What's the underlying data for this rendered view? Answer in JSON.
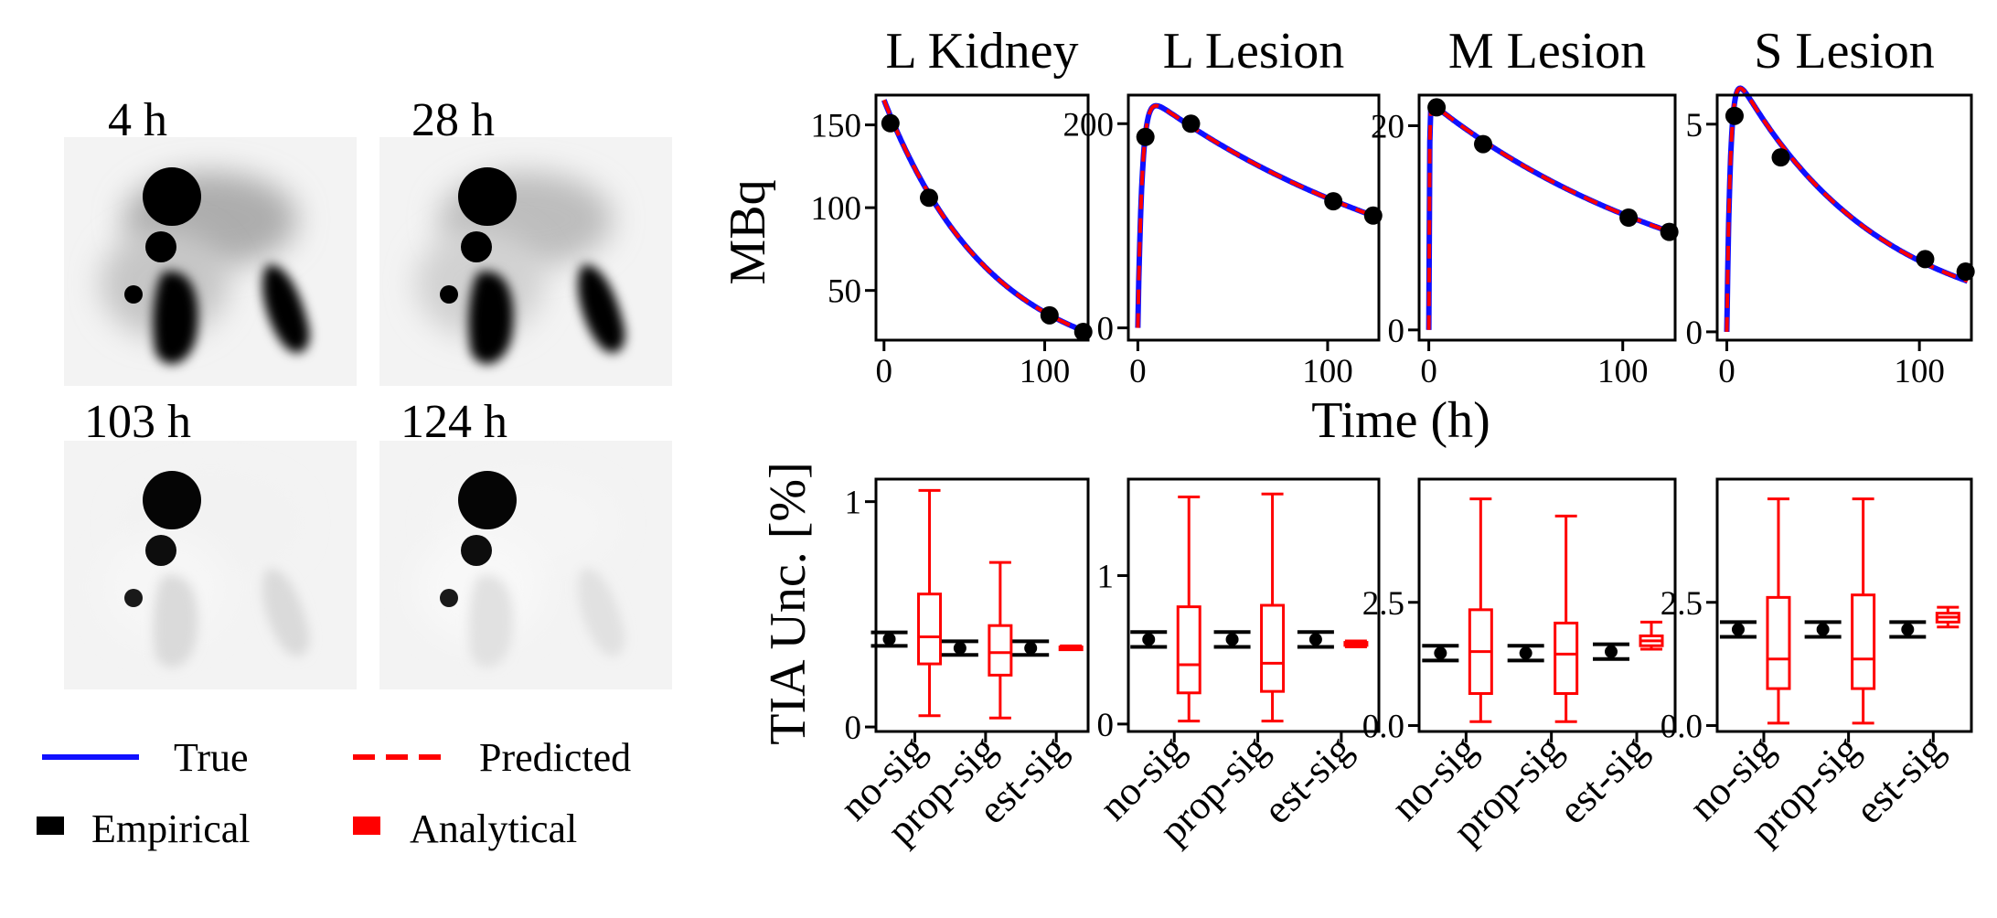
{
  "scans": [
    {
      "label": "4 h",
      "liver_intensity": 0.32,
      "organ_intensity": 1.0
    },
    {
      "label": "28 h",
      "liver_intensity": 0.26,
      "organ_intensity": 1.0
    },
    {
      "label": "103 h",
      "liver_intensity": 0.05,
      "organ_intensity": 0.16
    },
    {
      "label": "124 h",
      "liver_intensity": 0.04,
      "organ_intensity": 0.13
    }
  ],
  "legend": {
    "true_label": "True",
    "predicted_label": "Predicted",
    "empirical_label": "Empirical",
    "analytical_label": "Analytical"
  },
  "colors": {
    "true": "#1010ff",
    "predicted": "#ff0000",
    "empirical": "#000000",
    "analytical": "#ff0000"
  },
  "labels": {
    "time_axis": "Time (h)",
    "mbq_axis": "MBq",
    "tia_axis": "TIA Unc. [%]"
  },
  "chart_data": [
    {
      "type": "line",
      "title": "L Kidney",
      "xlabel": "Time (h)",
      "ylabel": "MBq",
      "xlim": [
        -5,
        127
      ],
      "ylim": [
        20,
        168
      ],
      "xticks": [
        0,
        100
      ],
      "yticks": [
        50,
        100,
        150
      ],
      "ytick_labels": [
        "50",
        "100",
        "150"
      ],
      "series": [
        {
          "name": "True",
          "model": {
            "A": 165,
            "k1": 0.0,
            "k2": 0.015,
            "peak": 0
          }
        },
        {
          "name": "Predicted",
          "model": {
            "A": 165,
            "k1": 0.0,
            "k2": 0.015,
            "peak": 0
          }
        }
      ],
      "points": {
        "x": [
          4,
          28,
          103,
          124
        ],
        "y": [
          151,
          106,
          35,
          25
        ]
      }
    },
    {
      "type": "line",
      "title": "L Lesion",
      "xlabel": "Time (h)",
      "ylabel": "MBq",
      "xlim": [
        -5,
        127
      ],
      "ylim": [
        -12,
        228
      ],
      "xticks": [
        0,
        100
      ],
      "yticks": [
        0,
        200
      ],
      "ytick_labels": [
        "0",
        "200"
      ],
      "series": [
        {
          "name": "True"
        },
        {
          "name": "Predicted"
        }
      ],
      "model": {
        "A": 234,
        "ke": 0.0061,
        "ka": 0.45
      },
      "points": {
        "x": [
          4,
          28,
          103,
          124
        ],
        "y": [
          187,
          200,
          124,
          110
        ]
      }
    },
    {
      "type": "line",
      "title": "M Lesion",
      "xlabel": "Time (h)",
      "ylabel": "MBq",
      "xlim": [
        -5,
        127
      ],
      "ylim": [
        -1,
        23
      ],
      "xticks": [
        0,
        100
      ],
      "yticks": [
        0,
        20
      ],
      "ytick_labels": [
        "0",
        "20"
      ],
      "series": [
        {
          "name": "True"
        },
        {
          "name": "Predicted"
        }
      ],
      "model": {
        "A": 22.4,
        "ke": 0.0068,
        "ka": 3.5
      },
      "points": {
        "x": [
          4,
          28,
          103,
          124
        ],
        "y": [
          21.8,
          18.2,
          11.0,
          9.6
        ]
      }
    },
    {
      "type": "line",
      "title": "S Lesion",
      "xlabel": "Time (h)",
      "ylabel": "MBq",
      "xlim": [
        -5,
        127
      ],
      "ylim": [
        -0.2,
        5.7
      ],
      "xticks": [
        0,
        100
      ],
      "yticks": [
        0,
        5
      ],
      "ytick_labels": [
        "0",
        "5"
      ],
      "series": [
        {
          "name": "True"
        },
        {
          "name": "Predicted"
        }
      ],
      "model": {
        "A": 6.6,
        "ke": 0.0135,
        "ka": 0.55
      },
      "points": {
        "x": [
          4,
          28,
          103,
          124
        ],
        "y": [
          5.2,
          4.2,
          1.75,
          1.45
        ]
      }
    },
    {
      "type": "box",
      "title": "",
      "ylabel": "TIA Unc. [%]",
      "ylim": [
        -0.02,
        1.1
      ],
      "yticks": [
        0,
        1
      ],
      "ytick_labels": [
        "0",
        "1"
      ],
      "categories": [
        "no-sig",
        "prop-sig",
        "est-sig"
      ],
      "empirical": [
        {
          "mean": 0.39,
          "lo": 0.36,
          "hi": 0.42
        },
        {
          "mean": 0.35,
          "lo": 0.32,
          "hi": 0.38
        },
        {
          "mean": 0.35,
          "lo": 0.32,
          "hi": 0.38
        }
      ],
      "analytical": [
        {
          "min": 0.05,
          "q1": 0.28,
          "med": 0.4,
          "q3": 0.59,
          "max": 1.05
        },
        {
          "min": 0.04,
          "q1": 0.23,
          "med": 0.33,
          "q3": 0.45,
          "max": 0.73
        },
        {
          "min": 0.345,
          "q1": 0.35,
          "med": 0.352,
          "q3": 0.355,
          "max": 0.36
        }
      ]
    },
    {
      "type": "box",
      "title": "",
      "ylabel": "TIA Unc. [%]",
      "ylim": [
        -0.05,
        1.65
      ],
      "yticks": [
        0,
        1
      ],
      "ytick_labels": [
        "0",
        "1"
      ],
      "categories": [
        "no-sig",
        "prop-sig",
        "est-sig"
      ],
      "empirical": [
        {
          "mean": 0.57,
          "lo": 0.52,
          "hi": 0.62
        },
        {
          "mean": 0.57,
          "lo": 0.52,
          "hi": 0.62
        },
        {
          "mean": 0.57,
          "lo": 0.52,
          "hi": 0.62
        }
      ],
      "analytical": [
        {
          "min": 0.02,
          "q1": 0.21,
          "med": 0.4,
          "q3": 0.79,
          "max": 1.53
        },
        {
          "min": 0.02,
          "q1": 0.22,
          "med": 0.41,
          "q3": 0.8,
          "max": 1.55
        },
        {
          "min": 0.52,
          "q1": 0.53,
          "med": 0.54,
          "q3": 0.55,
          "max": 0.56
        }
      ]
    },
    {
      "type": "box",
      "title": "",
      "ylabel": "TIA Unc. [%]",
      "ylim": [
        -0.12,
        5.0
      ],
      "yticks": [
        0,
        2.5
      ],
      "ytick_labels": [
        "0.0",
        "2.5"
      ],
      "categories": [
        "no-sig",
        "prop-sig",
        "est-sig"
      ],
      "empirical": [
        {
          "mean": 1.47,
          "lo": 1.32,
          "hi": 1.62
        },
        {
          "mean": 1.47,
          "lo": 1.32,
          "hi": 1.62
        },
        {
          "mean": 1.5,
          "lo": 1.35,
          "hi": 1.65
        }
      ],
      "analytical": [
        {
          "min": 0.08,
          "q1": 0.65,
          "med": 1.5,
          "q3": 2.35,
          "max": 4.6
        },
        {
          "min": 0.08,
          "q1": 0.65,
          "med": 1.45,
          "q3": 2.08,
          "max": 4.25
        },
        {
          "min": 1.55,
          "q1": 1.62,
          "med": 1.72,
          "q3": 1.82,
          "max": 2.1
        }
      ]
    },
    {
      "type": "box",
      "title": "",
      "ylabel": "TIA Unc. [%]",
      "ylim": [
        -0.12,
        5.0
      ],
      "yticks": [
        0,
        2.5
      ],
      "ytick_labels": [
        "0.0",
        "2.5"
      ],
      "categories": [
        "no-sig",
        "prop-sig",
        "est-sig"
      ],
      "empirical": [
        {
          "mean": 1.95,
          "lo": 1.8,
          "hi": 2.1
        },
        {
          "mean": 1.95,
          "lo": 1.8,
          "hi": 2.1
        },
        {
          "mean": 1.95,
          "lo": 1.8,
          "hi": 2.1
        }
      ],
      "analytical": [
        {
          "min": 0.05,
          "q1": 0.75,
          "med": 1.35,
          "q3": 2.6,
          "max": 4.6
        },
        {
          "min": 0.05,
          "q1": 0.75,
          "med": 1.35,
          "q3": 2.65,
          "max": 4.6
        },
        {
          "min": 2.0,
          "q1": 2.1,
          "med": 2.2,
          "q3": 2.28,
          "max": 2.4
        }
      ]
    }
  ]
}
